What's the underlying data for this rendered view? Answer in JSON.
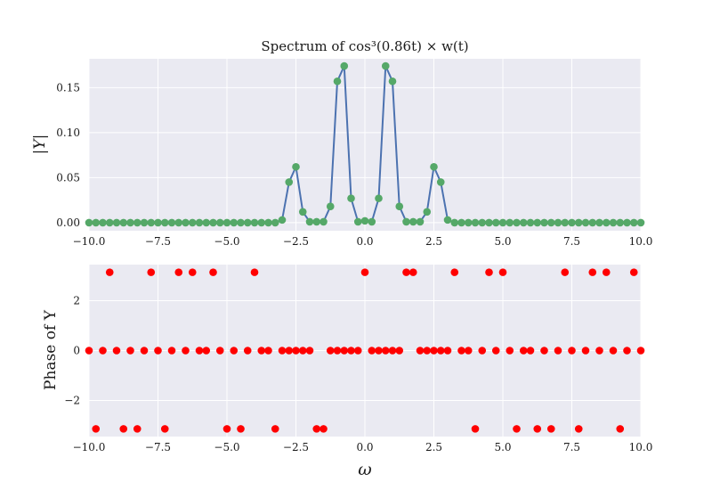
{
  "chart_data": [
    {
      "type": "line",
      "title": "Spectrum of cos³(0.86t) × w(t)",
      "xlabel": "",
      "ylabel": "|Y|",
      "xlim": [
        -10,
        10
      ],
      "ylim": [
        -0.009,
        0.182
      ],
      "grid": true,
      "xticks": [
        "−10.0",
        "−7.5",
        "−5.0",
        "−2.5",
        "0.0",
        "2.5",
        "5.0",
        "7.5",
        "10.0"
      ],
      "yticks": [
        "0.00",
        "0.05",
        "0.10",
        "0.15"
      ],
      "line_color": "#4c72b0",
      "marker_color": "#55a868",
      "x": [
        -10.0,
        -9.75,
        -9.5,
        -9.25,
        -9.0,
        -8.75,
        -8.5,
        -8.25,
        -8.0,
        -7.75,
        -7.5,
        -7.25,
        -7.0,
        -6.75,
        -6.5,
        -6.25,
        -6.0,
        -5.75,
        -5.5,
        -5.25,
        -5.0,
        -4.75,
        -4.5,
        -4.25,
        -4.0,
        -3.75,
        -3.5,
        -3.25,
        -3.0,
        -2.75,
        -2.5,
        -2.25,
        -2.0,
        -1.75,
        -1.5,
        -1.25,
        -1.0,
        -0.75,
        -0.5,
        -0.25,
        0.0,
        0.25,
        0.5,
        0.75,
        1.0,
        1.25,
        1.5,
        1.75,
        2.0,
        2.25,
        2.5,
        2.75,
        3.0,
        3.25,
        3.5,
        3.75,
        4.0,
        4.25,
        4.5,
        4.75,
        5.0,
        5.25,
        5.5,
        5.75,
        6.0,
        6.25,
        6.5,
        6.75,
        7.0,
        7.25,
        7.5,
        7.75,
        8.0,
        8.25,
        8.5,
        8.75,
        9.0,
        9.25,
        9.5,
        9.75,
        10.0
      ],
      "y": [
        0.0,
        0.0,
        0.0,
        0.0,
        0.0,
        0.0,
        0.0,
        0.0,
        0.0,
        0.0,
        0.0,
        0.0,
        0.0,
        0.0,
        0.0,
        0.0,
        0.0,
        0.0,
        0.0,
        0.0,
        0.0,
        0.0,
        0.0,
        0.0,
        0.0,
        0.0,
        0.0,
        0.0,
        0.003,
        0.045,
        0.062,
        0.012,
        0.001,
        0.001,
        0.001,
        0.018,
        0.157,
        0.174,
        0.027,
        0.001,
        0.002,
        0.001,
        0.027,
        0.174,
        0.157,
        0.018,
        0.001,
        0.001,
        0.001,
        0.012,
        0.062,
        0.045,
        0.003,
        0.0,
        0.0,
        0.0,
        0.0,
        0.0,
        0.0,
        0.0,
        0.0,
        0.0,
        0.0,
        0.0,
        0.0,
        0.0,
        0.0,
        0.0,
        0.0,
        0.0,
        0.0,
        0.0,
        0.0,
        0.0,
        0.0,
        0.0,
        0.0,
        0.0,
        0.0,
        0.0,
        0.0
      ]
    },
    {
      "type": "scatter",
      "title": "",
      "xlabel": "ω",
      "ylabel": "Phase of Y",
      "xlim": [
        -10,
        10
      ],
      "ylim": [
        -3.45,
        3.45
      ],
      "grid": true,
      "xticks": [
        "−10.0",
        "−7.5",
        "−5.0",
        "−2.5",
        "0.0",
        "2.5",
        "5.0",
        "7.5",
        "10.0"
      ],
      "yticks": [
        "−2",
        "0",
        "2"
      ],
      "marker_color": "#ff0000",
      "x": [
        -10.0,
        -9.75,
        -9.5,
        -9.25,
        -9.0,
        -8.75,
        -8.5,
        -8.25,
        -8.0,
        -7.75,
        -7.5,
        -7.25,
        -7.0,
        -6.75,
        -6.5,
        -6.25,
        -6.0,
        -5.75,
        -5.5,
        -5.25,
        -5.0,
        -4.75,
        -4.5,
        -4.25,
        -4.0,
        -3.75,
        -3.5,
        -3.25,
        -3.0,
        -2.75,
        -2.5,
        -2.25,
        -2.0,
        -1.75,
        -1.5,
        -1.25,
        -1.0,
        -0.75,
        -0.5,
        -0.25,
        0.0,
        0.25,
        0.5,
        0.75,
        1.0,
        1.25,
        1.5,
        1.75,
        2.0,
        2.25,
        2.5,
        2.75,
        3.0,
        3.25,
        3.5,
        3.75,
        4.0,
        4.25,
        4.5,
        4.75,
        5.0,
        5.25,
        5.5,
        5.75,
        6.0,
        6.25,
        6.5,
        6.75,
        7.0,
        7.25,
        7.5,
        7.75,
        8.0,
        8.25,
        8.5,
        8.75,
        9.0,
        9.25,
        9.5,
        9.75,
        10.0
      ],
      "y": [
        0,
        -3.14159,
        0,
        3.14159,
        0,
        -3.14159,
        0,
        -3.14159,
        0,
        3.14159,
        0,
        -3.14159,
        0,
        3.14159,
        0,
        3.14159,
        0,
        0,
        3.14159,
        0,
        -3.14159,
        0,
        -3.14159,
        0,
        3.14159,
        0,
        0,
        -3.14159,
        0,
        0,
        0,
        0,
        0,
        -3.14159,
        -3.14159,
        0,
        0,
        0,
        0,
        0,
        3.14159,
        0,
        0,
        0,
        0,
        0,
        3.14159,
        3.14159,
        0,
        0,
        0,
        0,
        0,
        3.14159,
        0,
        0,
        -3.14159,
        0,
        3.14159,
        0,
        3.14159,
        0,
        -3.14159,
        0,
        0,
        -3.14159,
        0,
        -3.14159,
        0,
        3.14159,
        0,
        -3.14159,
        0,
        3.14159,
        0,
        3.14159,
        0,
        -3.14159,
        0,
        3.14159,
        0
      ]
    }
  ]
}
